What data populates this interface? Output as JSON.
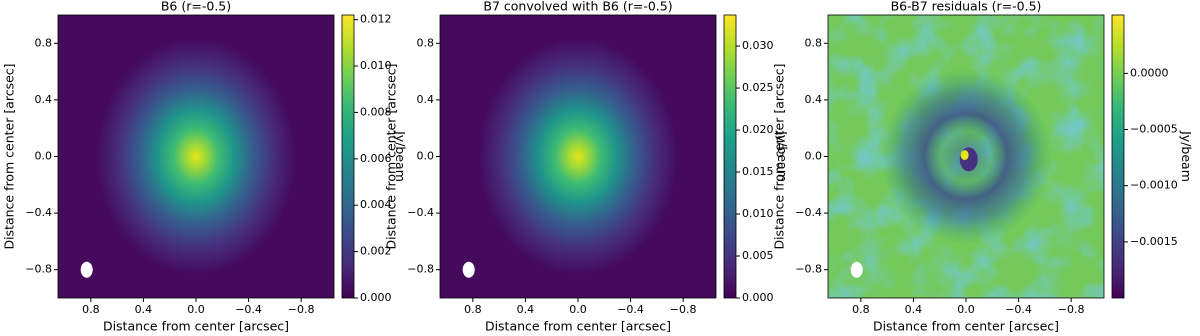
{
  "chart_data": [
    {
      "type": "image",
      "title": "B6 (r=-0.5)",
      "xlabel": "Distance from center [arcsec]",
      "ylabel": "Distance from center [arcsec]",
      "xlim": [
        1.05,
        -1.05
      ],
      "ylim": [
        -1,
        1
      ],
      "xticks": [
        0.8,
        0.4,
        {
          "value": 0,
          "label": "0.0"
        },
        {
          "value": -0.4,
          "label": "−0.4"
        },
        {
          "value": -0.8,
          "label": "−0.8"
        }
      ],
      "yticks": [
        {
          "value": -0.8,
          "label": "−0.8"
        },
        {
          "value": -0.4,
          "label": "−0.4"
        },
        {
          "value": 0,
          "label": "0.0"
        },
        0.4,
        0.8
      ],
      "colormap": "viridis",
      "colorbar": {
        "label": "Jy/beam",
        "lim": [
          0,
          0.0122
        ],
        "ticks": [
          {
            "value": 0,
            "label": "0.000"
          },
          0.002,
          0.004,
          0.006,
          0.008,
          {
            "value": 0.01,
            "label": "0.010"
          },
          {
            "value": 0.012,
            "label": "0.012"
          }
        ]
      }
    },
    {
      "type": "image",
      "title": "B7 convolved with B6 (r=-0.5)",
      "xlabel": "Distance from center [arcsec]",
      "ylabel": "Distance from center [arcsec]",
      "xlim": [
        1.05,
        -1.05
      ],
      "ylim": [
        -1,
        1
      ],
      "xticks": [
        0.8,
        0.4,
        {
          "value": 0,
          "label": "0.0"
        },
        {
          "value": -0.4,
          "label": "−0.4"
        },
        {
          "value": -0.8,
          "label": "−0.8"
        }
      ],
      "yticks": [
        {
          "value": -0.8,
          "label": "−0.8"
        },
        {
          "value": -0.4,
          "label": "−0.4"
        },
        {
          "value": 0,
          "label": "0.0"
        },
        0.4,
        0.8
      ],
      "colormap": "viridis",
      "colorbar": {
        "label": "Jy/beam",
        "lim": [
          0,
          0.0337
        ],
        "ticks": [
          {
            "value": 0,
            "label": "0.000"
          },
          0.005,
          {
            "value": 0.01,
            "label": "0.010"
          },
          0.015,
          {
            "value": 0.02,
            "label": "0.020"
          },
          0.025,
          {
            "value": 0.03,
            "label": "0.030"
          }
        ]
      }
    },
    {
      "type": "image",
      "title": "B6-B7 residuals (r=-0.5)",
      "xlabel": "Distance from center [arcsec]",
      "ylabel": "Distance from center [arcsec]",
      "xlim": [
        1.05,
        -1.05
      ],
      "ylim": [
        -1,
        1
      ],
      "xticks": [
        0.8,
        0.4,
        {
          "value": 0,
          "label": "0.0"
        },
        {
          "value": -0.4,
          "label": "−0.4"
        },
        {
          "value": -0.8,
          "label": "−0.8"
        }
      ],
      "yticks": [
        {
          "value": -0.8,
          "label": "−0.8"
        },
        {
          "value": -0.4,
          "label": "−0.4"
        },
        {
          "value": 0,
          "label": "0.0"
        },
        0.4,
        0.8
      ],
      "colormap": "viridis",
      "colorbar": {
        "label": "Jy/beam",
        "lim": [
          -0.002,
          0.00052
        ],
        "ticks": [
          {
            "value": -0.0015,
            "label": "−0.0015"
          },
          {
            "value": -0.001,
            "label": "−0.0010"
          },
          {
            "value": -0.0005,
            "label": "−0.0005"
          },
          {
            "value": 0,
            "label": "0.0000"
          }
        ]
      }
    }
  ]
}
